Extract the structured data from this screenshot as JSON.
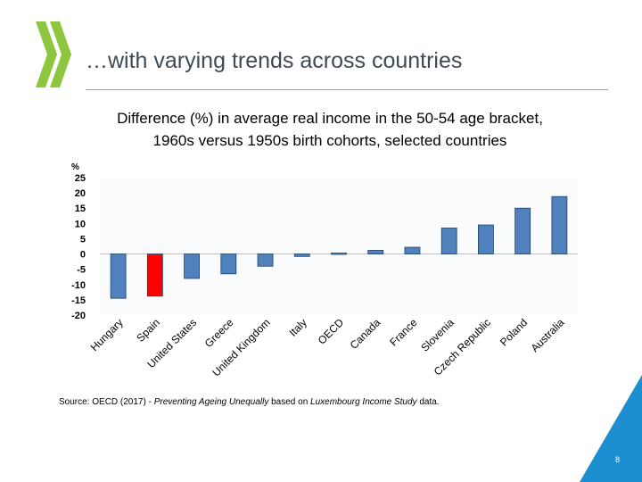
{
  "slide": {
    "title": "…with varying trends across countries",
    "page_number": "8",
    "brand_color": "#8dc63f",
    "accent_color": "#1b8fd0"
  },
  "source": {
    "prefix": "Source: OECD (2017) - ",
    "italic1": "Preventing Ageing Unequally",
    "middle": " based on ",
    "italic2": "Luxembourg Income Study",
    "suffix": " data."
  },
  "chart_data": {
    "type": "bar",
    "title": "Difference (%) in average real income in the 50-54 age bracket,\n1960s versus 1950s birth cohorts, selected countries",
    "ylabel": "%",
    "ylim": [
      -20,
      25
    ],
    "yticks": [
      25,
      20,
      15,
      10,
      5,
      0,
      -5,
      -10,
      -15,
      -20
    ],
    "categories": [
      "Hungary",
      "Spain",
      "United States",
      "Greece",
      "United Kingdom",
      "Italy",
      "OECD",
      "Canada",
      "France",
      "Slovenia",
      "Czech Republic",
      "Poland",
      "Australia"
    ],
    "values": [
      -14.5,
      -13.8,
      -8,
      -6.5,
      -4,
      -0.8,
      0.3,
      1.2,
      2.2,
      8.5,
      9.5,
      15,
      18.8
    ],
    "bar_color": "#4f81bd",
    "highlight_color": "#ff0000",
    "highlight_index": 1,
    "grid": false
  }
}
